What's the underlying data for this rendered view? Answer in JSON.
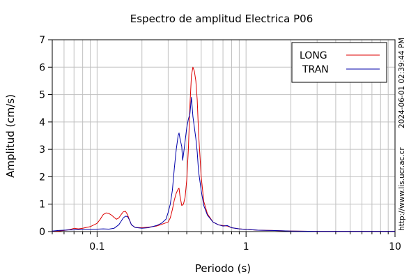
{
  "chart_data": {
    "type": "line",
    "title": "Espectro de amplitud Electrica P06",
    "xlabel": "Periodo (s)",
    "ylabel": "Amplitud (cm/s)",
    "x_scale": "log",
    "xlim": [
      0.05,
      10
    ],
    "ylim": [
      0,
      7
    ],
    "grid": true,
    "legend_placement": "top-right",
    "x_tick_labels": [
      "0.1",
      "1",
      "10"
    ],
    "y_tick_labels": [
      "0",
      "1",
      "2",
      "3",
      "4",
      "5",
      "6",
      "7"
    ],
    "series": [
      {
        "name": "LONG",
        "color": "#dd0000",
        "points": [
          [
            0.05,
            0.02
          ],
          [
            0.055,
            0.02
          ],
          [
            0.06,
            0.04
          ],
          [
            0.065,
            0.07
          ],
          [
            0.07,
            0.12
          ],
          [
            0.075,
            0.1
          ],
          [
            0.08,
            0.12
          ],
          [
            0.09,
            0.18
          ],
          [
            0.1,
            0.3
          ],
          [
            0.105,
            0.45
          ],
          [
            0.11,
            0.62
          ],
          [
            0.115,
            0.68
          ],
          [
            0.12,
            0.66
          ],
          [
            0.125,
            0.6
          ],
          [
            0.13,
            0.52
          ],
          [
            0.135,
            0.45
          ],
          [
            0.14,
            0.5
          ],
          [
            0.145,
            0.62
          ],
          [
            0.15,
            0.72
          ],
          [
            0.155,
            0.74
          ],
          [
            0.16,
            0.62
          ],
          [
            0.165,
            0.42
          ],
          [
            0.17,
            0.25
          ],
          [
            0.18,
            0.15
          ],
          [
            0.2,
            0.14
          ],
          [
            0.22,
            0.16
          ],
          [
            0.25,
            0.2
          ],
          [
            0.27,
            0.26
          ],
          [
            0.3,
            0.35
          ],
          [
            0.31,
            0.5
          ],
          [
            0.32,
            0.8
          ],
          [
            0.33,
            1.15
          ],
          [
            0.34,
            1.4
          ],
          [
            0.35,
            1.55
          ],
          [
            0.355,
            1.58
          ],
          [
            0.36,
            1.3
          ],
          [
            0.37,
            0.95
          ],
          [
            0.38,
            1.0
          ],
          [
            0.39,
            1.25
          ],
          [
            0.4,
            1.9
          ],
          [
            0.41,
            3.0
          ],
          [
            0.42,
            4.6
          ],
          [
            0.43,
            5.7
          ],
          [
            0.44,
            6.0
          ],
          [
            0.45,
            5.85
          ],
          [
            0.46,
            5.5
          ],
          [
            0.47,
            4.8
          ],
          [
            0.48,
            3.6
          ],
          [
            0.5,
            2.0
          ],
          [
            0.52,
            1.1
          ],
          [
            0.55,
            0.65
          ],
          [
            0.6,
            0.35
          ],
          [
            0.65,
            0.25
          ],
          [
            0.7,
            0.22
          ],
          [
            0.75,
            0.2
          ],
          [
            0.8,
            0.14
          ],
          [
            0.9,
            0.1
          ],
          [
            1.0,
            0.08
          ],
          [
            1.2,
            0.05
          ],
          [
            1.5,
            0.04
          ],
          [
            2.0,
            0.02
          ],
          [
            3.0,
            0.01
          ],
          [
            5.0,
            0.01
          ],
          [
            10.0,
            0.01
          ]
        ]
      },
      {
        "name": "TRAN",
        "color": "#0000aa",
        "points": [
          [
            0.05,
            0.02
          ],
          [
            0.055,
            0.04
          ],
          [
            0.06,
            0.05
          ],
          [
            0.065,
            0.06
          ],
          [
            0.07,
            0.06
          ],
          [
            0.075,
            0.07
          ],
          [
            0.08,
            0.08
          ],
          [
            0.09,
            0.08
          ],
          [
            0.1,
            0.09
          ],
          [
            0.11,
            0.1
          ],
          [
            0.12,
            0.09
          ],
          [
            0.13,
            0.12
          ],
          [
            0.14,
            0.25
          ],
          [
            0.145,
            0.38
          ],
          [
            0.15,
            0.5
          ],
          [
            0.155,
            0.56
          ],
          [
            0.16,
            0.55
          ],
          [
            0.165,
            0.42
          ],
          [
            0.17,
            0.25
          ],
          [
            0.18,
            0.15
          ],
          [
            0.2,
            0.12
          ],
          [
            0.22,
            0.14
          ],
          [
            0.25,
            0.22
          ],
          [
            0.27,
            0.3
          ],
          [
            0.29,
            0.45
          ],
          [
            0.3,
            0.7
          ],
          [
            0.31,
            1.0
          ],
          [
            0.32,
            1.5
          ],
          [
            0.33,
            2.3
          ],
          [
            0.34,
            3.0
          ],
          [
            0.35,
            3.5
          ],
          [
            0.355,
            3.6
          ],
          [
            0.36,
            3.4
          ],
          [
            0.37,
            3.1
          ],
          [
            0.375,
            2.6
          ],
          [
            0.38,
            2.8
          ],
          [
            0.39,
            3.3
          ],
          [
            0.4,
            3.8
          ],
          [
            0.41,
            4.1
          ],
          [
            0.42,
            4.3
          ],
          [
            0.43,
            4.9
          ],
          [
            0.44,
            4.2
          ],
          [
            0.45,
            3.8
          ],
          [
            0.46,
            3.4
          ],
          [
            0.47,
            2.9
          ],
          [
            0.48,
            2.2
          ],
          [
            0.5,
            1.5
          ],
          [
            0.52,
            0.95
          ],
          [
            0.55,
            0.6
          ],
          [
            0.6,
            0.35
          ],
          [
            0.65,
            0.25
          ],
          [
            0.7,
            0.2
          ],
          [
            0.75,
            0.22
          ],
          [
            0.8,
            0.14
          ],
          [
            0.9,
            0.1
          ],
          [
            1.0,
            0.08
          ],
          [
            1.2,
            0.05
          ],
          [
            1.5,
            0.04
          ],
          [
            2.0,
            0.02
          ],
          [
            3.0,
            0.01
          ],
          [
            5.0,
            0.01
          ],
          [
            10.0,
            0.01
          ]
        ]
      }
    ]
  },
  "side_text": {
    "timestamp": "2024-06-01 02:39:44 PM",
    "url": "http://www.lis.ucr.ac.cr"
  }
}
